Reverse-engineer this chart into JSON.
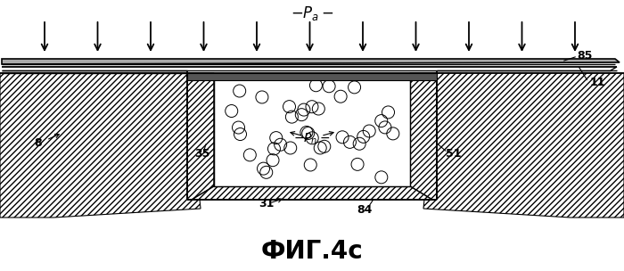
{
  "title": "ФИГ.4c",
  "title_fontsize": 20,
  "background_color": "#ffffff",
  "line_color": "#000000",
  "hatch_density": "/////"
}
